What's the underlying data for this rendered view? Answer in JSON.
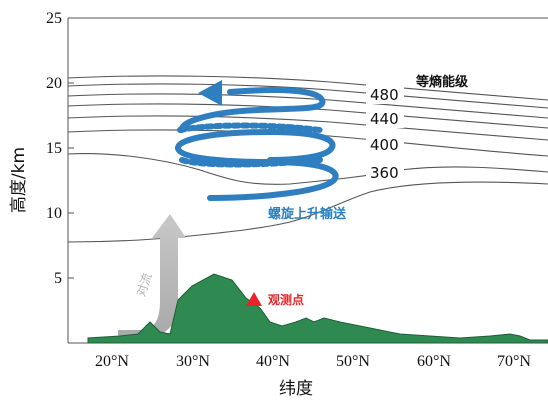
{
  "axes": {
    "y_title": "高度/km",
    "x_title": "纬度",
    "y_ticks": [
      "5",
      "10",
      "15",
      "20",
      "25"
    ],
    "x_ticks": [
      "20°N",
      "30°N",
      "40°N",
      "50°N",
      "60°N",
      "70°N"
    ]
  },
  "isentropes": {
    "legend": "等熵能级",
    "labels": [
      "480",
      "440",
      "400",
      "360"
    ]
  },
  "annotations": {
    "spiral": "螺旋上升输送",
    "observation": "观测点",
    "convection": "对流"
  },
  "colors": {
    "terrain": "#2f8a52",
    "spiral": "#2f7fc0",
    "convection_arrow": "#a9a9a9",
    "observation_marker": "#e8232a"
  }
}
